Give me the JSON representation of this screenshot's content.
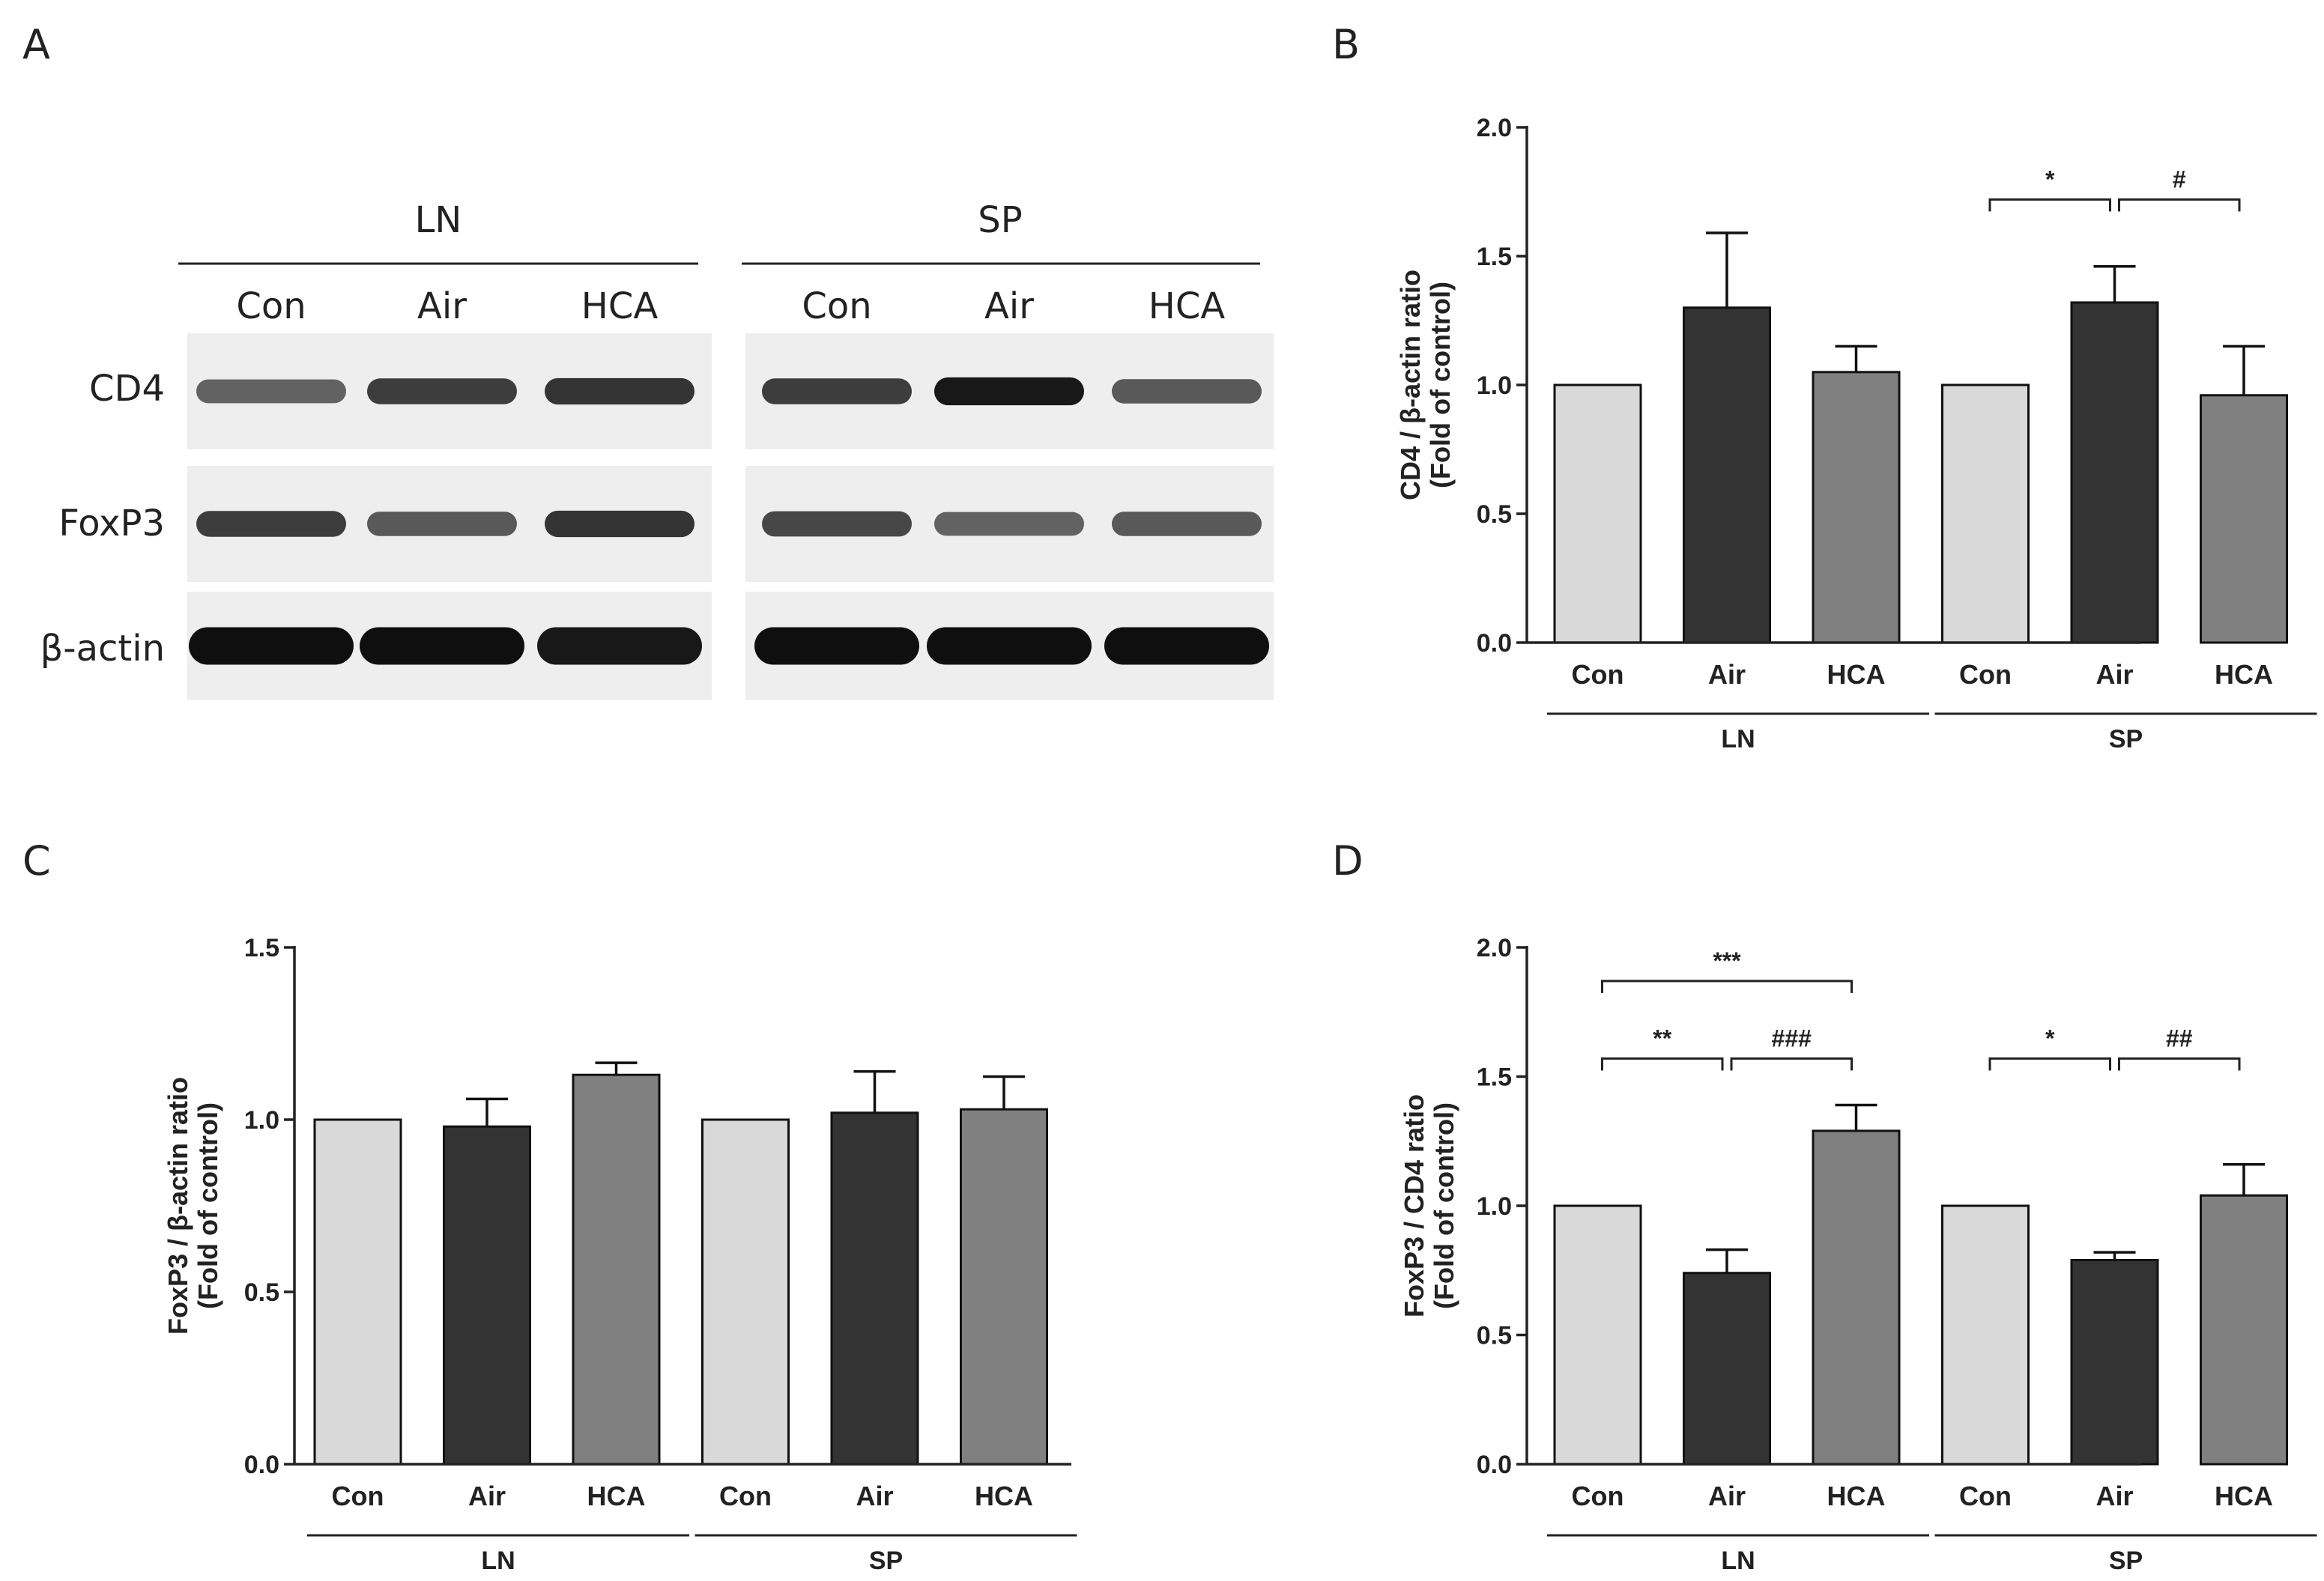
{
  "figure": {
    "panel_letters": [
      "A",
      "B",
      "C",
      "D"
    ]
  },
  "colors": {
    "Con": "#d9d9d9",
    "Air": "#333333",
    "HCA": "#808080"
  },
  "blot": {
    "groups": [
      "LN",
      "SP"
    ],
    "lanes": [
      "Con",
      "Air",
      "HCA",
      "Con",
      "Air",
      "HCA"
    ],
    "rows": [
      "CD4",
      "FoxP3",
      "β-actin"
    ],
    "band_intensity": {
      "CD4": [
        0.55,
        0.75,
        0.8,
        0.75,
        0.95,
        0.6
      ],
      "FoxP3": [
        0.75,
        0.6,
        0.8,
        0.7,
        0.55,
        0.6
      ],
      "β-actin": [
        1.0,
        1.0,
        0.95,
        1.0,
        1.0,
        1.0
      ]
    }
  },
  "chart_data": [
    {
      "panel": "B",
      "type": "bar",
      "categories": [
        "Con",
        "Air",
        "HCA",
        "Con",
        "Air",
        "HCA"
      ],
      "groups": [
        {
          "label": "LN",
          "indices": [
            0,
            1,
            2
          ]
        },
        {
          "label": "SP",
          "indices": [
            3,
            4,
            5
          ]
        }
      ],
      "values": [
        1.0,
        1.3,
        1.05,
        1.0,
        1.32,
        0.96
      ],
      "errors": [
        0,
        0.29,
        0.1,
        0,
        0.14,
        0.19
      ],
      "ylabel_line1": "CD4 / β-actin ratio",
      "ylabel_line2": "(Fold of control)",
      "ylim": [
        0,
        2.0
      ],
      "yticks": [
        "0.0",
        "0.5",
        "1.0",
        "1.5",
        "2.0"
      ],
      "ytick_values": [
        0,
        0.5,
        1.0,
        1.5,
        2.0
      ],
      "significance": [
        {
          "label": "*",
          "from": 3,
          "to": 4,
          "level": 1.72
        },
        {
          "label": "#",
          "from": 4,
          "to": 5,
          "level": 1.72
        }
      ]
    },
    {
      "panel": "C",
      "type": "bar",
      "categories": [
        "Con",
        "Air",
        "HCA",
        "Con",
        "Air",
        "HCA"
      ],
      "groups": [
        {
          "label": "LN",
          "indices": [
            0,
            1,
            2
          ]
        },
        {
          "label": "SP",
          "indices": [
            3,
            4,
            5
          ]
        }
      ],
      "values": [
        1.0,
        0.98,
        1.13,
        1.0,
        1.02,
        1.03
      ],
      "errors": [
        0,
        0.08,
        0.035,
        0,
        0.12,
        0.095
      ],
      "ylabel_line1": "FoxP3 / β-actin ratio",
      "ylabel_line2": "(Fold of control)",
      "ylim": [
        0,
        1.5
      ],
      "yticks": [
        "0.0",
        "0.5",
        "1.0",
        "1.5"
      ],
      "ytick_values": [
        0,
        0.5,
        1.0,
        1.5
      ],
      "significance": []
    },
    {
      "panel": "D",
      "type": "bar",
      "categories": [
        "Con",
        "Air",
        "HCA",
        "Con",
        "Air",
        "HCA"
      ],
      "groups": [
        {
          "label": "LN",
          "indices": [
            0,
            1,
            2
          ]
        },
        {
          "label": "SP",
          "indices": [
            3,
            4,
            5
          ]
        }
      ],
      "values": [
        1.0,
        0.74,
        1.29,
        1.0,
        0.79,
        1.04
      ],
      "errors": [
        0,
        0.09,
        0.1,
        0,
        0.03,
        0.12
      ],
      "ylabel_line1": "FoxP3 / CD4 ratio",
      "ylabel_line2": "(Fold of control)",
      "ylim": [
        0,
        2.0
      ],
      "yticks": [
        "0.0",
        "0.5",
        "1.0",
        "1.5",
        "2.0"
      ],
      "ytick_values": [
        0,
        0.5,
        1.0,
        1.5,
        2.0
      ],
      "significance": [
        {
          "label": "***",
          "from": 0,
          "to": 2,
          "level": 1.87
        },
        {
          "label": "**",
          "from": 0,
          "to": 1,
          "level": 1.57
        },
        {
          "label": "###",
          "from": 1,
          "to": 2,
          "level": 1.57
        },
        {
          "label": "*",
          "from": 3,
          "to": 4,
          "level": 1.57
        },
        {
          "label": "##",
          "from": 4,
          "to": 5,
          "level": 1.57
        }
      ]
    }
  ]
}
